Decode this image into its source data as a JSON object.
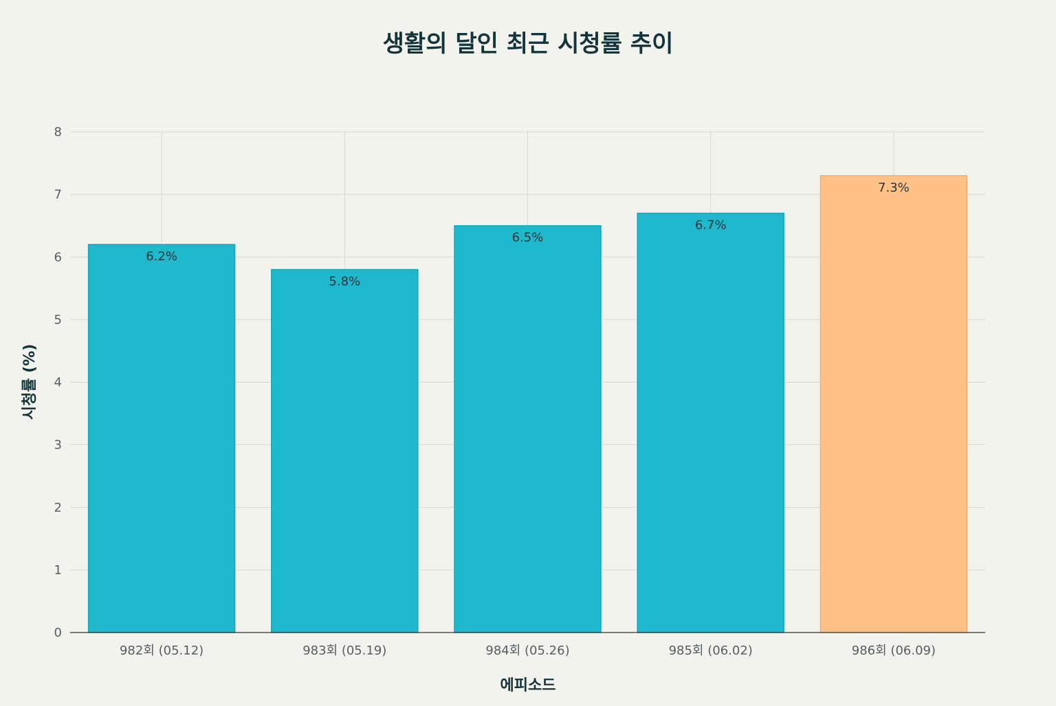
{
  "chart_data": {
    "type": "bar",
    "title": "생활의 달인 최근 시청률 추이",
    "xlabel": "에피소드",
    "ylabel": "시청률 (%)",
    "categories": [
      "982회 (05.12)",
      "983회 (05.19)",
      "984회 (05.26)",
      "985회 (06.02)",
      "986회 (06.09)"
    ],
    "values": [
      6.2,
      5.8,
      6.5,
      6.7,
      7.3
    ],
    "value_labels": [
      "6.2%",
      "5.8%",
      "6.5%",
      "6.7%",
      "7.3%"
    ],
    "ylim": [
      0,
      8
    ],
    "yticks": [
      0,
      1,
      2,
      3,
      4,
      5,
      6,
      7,
      8
    ],
    "grid": true,
    "legend": "none",
    "colors": {
      "bar": "#20b8cd",
      "bar_edge": "#1aa3b6",
      "highlight": "#ffc185",
      "highlight_edge": "#f0ad6e",
      "highlight_index": 4
    }
  }
}
